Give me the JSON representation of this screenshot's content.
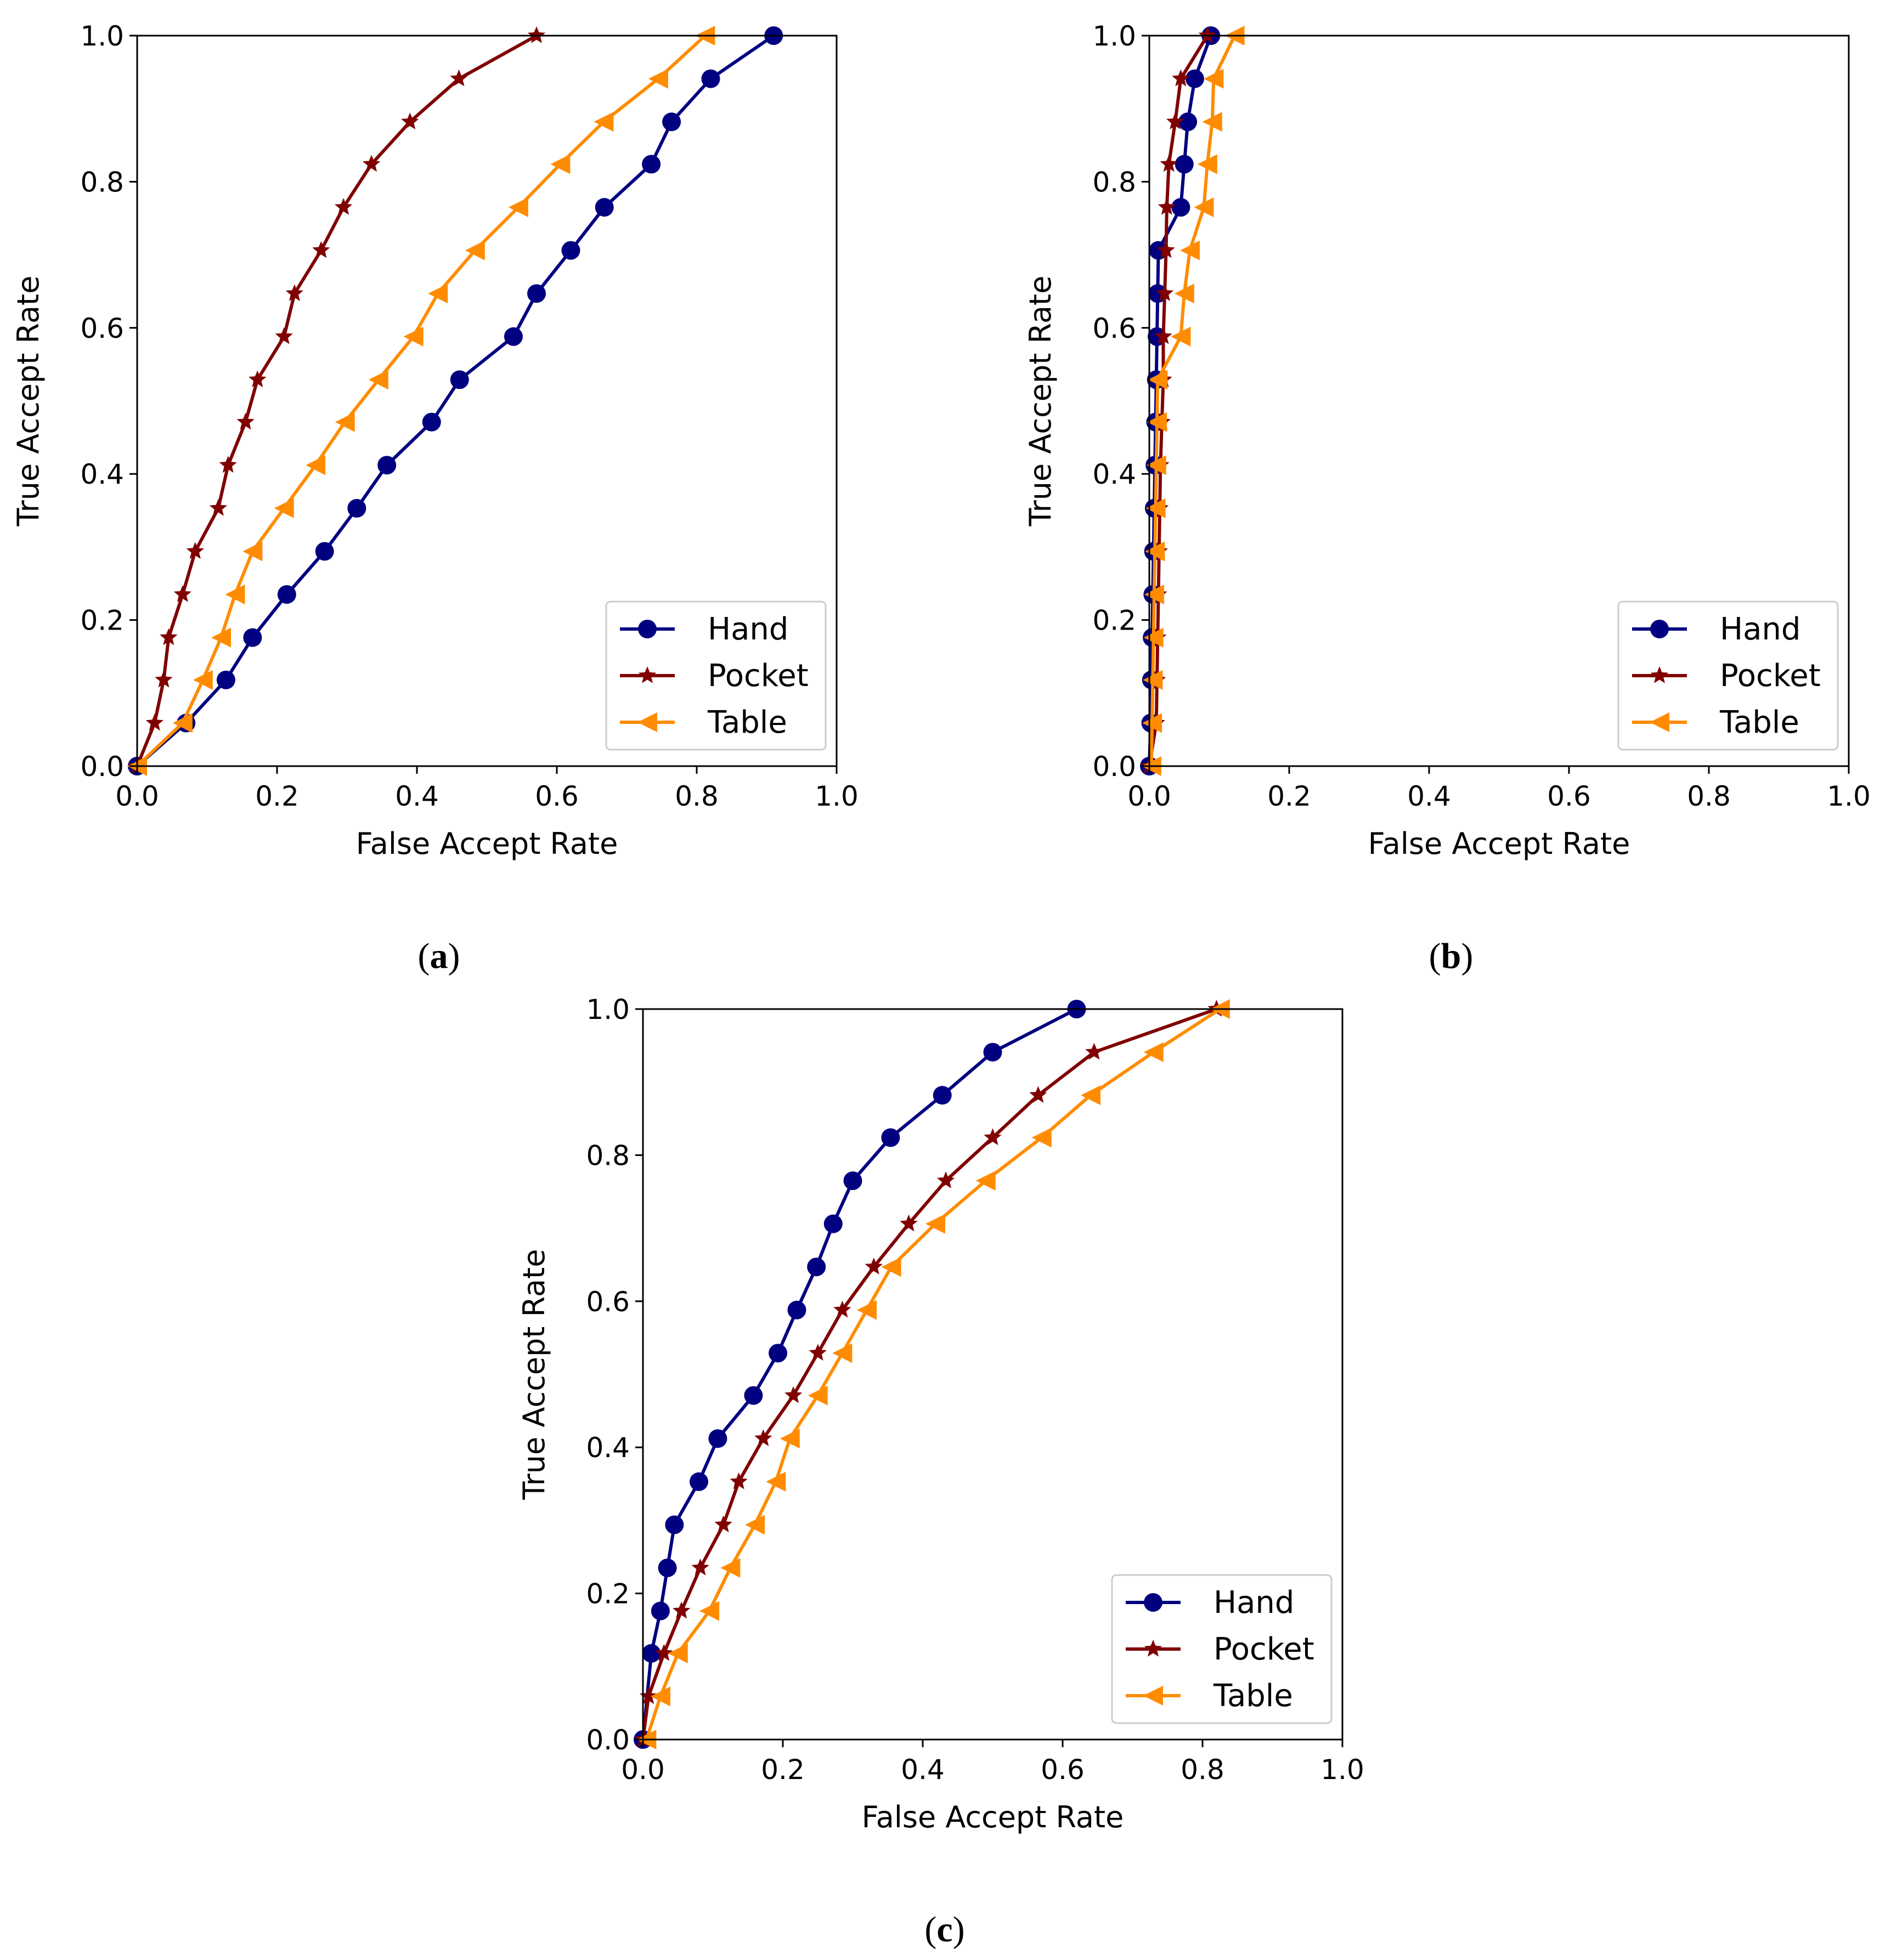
{
  "series_colors": {
    "Hand": "#000080",
    "Pocket": "#800000",
    "Table": "#FF8C00"
  },
  "series_markers": {
    "Hand": "circle",
    "Pocket": "star",
    "Table": "triangle-left"
  },
  "chart_data": [
    {
      "type": "line",
      "caption_letter": "a",
      "xlabel": "False Accept Rate",
      "ylabel": "True Accept Rate",
      "xlim": [
        0,
        1
      ],
      "ylim": [
        0,
        1
      ],
      "xticks": [
        "0.0",
        "0.2",
        "0.4",
        "0.6",
        "0.8",
        "1.0"
      ],
      "yticks": [
        "0.0",
        "0.2",
        "0.4",
        "0.6",
        "0.8",
        "1.0"
      ],
      "grid": false,
      "legend_position": "bottom-right",
      "series": [
        {
          "name": "Hand",
          "x": [
            0.0,
            0.07,
            0.127,
            0.165,
            0.214,
            0.268,
            0.314,
            0.357,
            0.421,
            0.461,
            0.538,
            0.571,
            0.62,
            0.668,
            0.735,
            0.764,
            0.82,
            0.91
          ],
          "y": [
            0.0,
            0.059,
            0.118,
            0.176,
            0.235,
            0.294,
            0.353,
            0.412,
            0.471,
            0.529,
            0.588,
            0.647,
            0.706,
            0.765,
            0.824,
            0.882,
            0.941,
            1.0
          ]
        },
        {
          "name": "Pocket",
          "x": [
            0.0,
            0.025,
            0.038,
            0.045,
            0.065,
            0.083,
            0.116,
            0.13,
            0.155,
            0.172,
            0.21,
            0.225,
            0.263,
            0.295,
            0.335,
            0.39,
            0.46,
            0.571
          ],
          "y": [
            0.0,
            0.059,
            0.118,
            0.176,
            0.235,
            0.294,
            0.353,
            0.412,
            0.471,
            0.529,
            0.588,
            0.647,
            0.706,
            0.765,
            0.824,
            0.882,
            0.941,
            1.0
          ]
        },
        {
          "name": "Table",
          "x": [
            0.0,
            0.065,
            0.094,
            0.12,
            0.14,
            0.165,
            0.21,
            0.255,
            0.297,
            0.345,
            0.395,
            0.43,
            0.483,
            0.545,
            0.605,
            0.667,
            0.745,
            0.812
          ],
          "y": [
            0.0,
            0.059,
            0.118,
            0.176,
            0.235,
            0.294,
            0.353,
            0.412,
            0.471,
            0.529,
            0.588,
            0.647,
            0.706,
            0.765,
            0.824,
            0.882,
            0.941,
            1.0
          ]
        }
      ]
    },
    {
      "type": "line",
      "caption_letter": "b",
      "xlabel": "False Accept Rate",
      "ylabel": "True Accept Rate",
      "xlim": [
        0,
        1
      ],
      "ylim": [
        0,
        1
      ],
      "xticks": [
        "0.0",
        "0.2",
        "0.4",
        "0.6",
        "0.8",
        "1.0"
      ],
      "yticks": [
        "0.0",
        "0.2",
        "0.4",
        "0.6",
        "0.8",
        "1.0"
      ],
      "grid": false,
      "legend_position": "bottom-right",
      "series": [
        {
          "name": "Hand",
          "x": [
            0.0,
            0.002,
            0.003,
            0.004,
            0.005,
            0.006,
            0.007,
            0.008,
            0.009,
            0.01,
            0.011,
            0.012,
            0.013,
            0.045,
            0.05,
            0.055,
            0.065,
            0.088
          ],
          "y": [
            0.0,
            0.059,
            0.118,
            0.176,
            0.235,
            0.294,
            0.353,
            0.412,
            0.471,
            0.529,
            0.588,
            0.647,
            0.706,
            0.765,
            0.824,
            0.882,
            0.941,
            1.0
          ]
        },
        {
          "name": "Pocket",
          "x": [
            0.0,
            0.01,
            0.011,
            0.012,
            0.013,
            0.014,
            0.015,
            0.016,
            0.018,
            0.02,
            0.02,
            0.022,
            0.024,
            0.025,
            0.028,
            0.037,
            0.045,
            0.083
          ],
          "y": [
            0.0,
            0.059,
            0.118,
            0.176,
            0.235,
            0.294,
            0.353,
            0.412,
            0.471,
            0.529,
            0.588,
            0.647,
            0.706,
            0.765,
            0.824,
            0.882,
            0.941,
            1.0
          ]
        },
        {
          "name": "Table",
          "x": [
            0.003,
            0.004,
            0.005,
            0.006,
            0.007,
            0.008,
            0.009,
            0.01,
            0.011,
            0.012,
            0.045,
            0.05,
            0.058,
            0.078,
            0.083,
            0.09,
            0.092,
            0.122
          ],
          "y": [
            0.0,
            0.059,
            0.118,
            0.176,
            0.235,
            0.294,
            0.353,
            0.412,
            0.471,
            0.529,
            0.588,
            0.647,
            0.706,
            0.765,
            0.824,
            0.882,
            0.941,
            1.0
          ]
        }
      ]
    },
    {
      "type": "line",
      "caption_letter": "c",
      "xlabel": "False Accept Rate",
      "ylabel": "True Accept Rate",
      "xlim": [
        0,
        1
      ],
      "ylim": [
        0,
        1
      ],
      "xticks": [
        "0.0",
        "0.2",
        "0.4",
        "0.6",
        "0.8",
        "1.0"
      ],
      "yticks": [
        "0.0",
        "0.2",
        "0.4",
        "0.6",
        "0.8",
        "1.0"
      ],
      "grid": false,
      "legend_position": "bottom-right",
      "series": [
        {
          "name": "Hand",
          "x": [
            0.0,
            0.012,
            0.025,
            0.035,
            0.045,
            0.08,
            0.107,
            0.158,
            0.193,
            0.22,
            0.248,
            0.272,
            0.3,
            0.354,
            0.428,
            0.5,
            0.62
          ],
          "y": [
            0.0,
            0.118,
            0.176,
            0.235,
            0.294,
            0.353,
            0.412,
            0.471,
            0.529,
            0.588,
            0.647,
            0.706,
            0.765,
            0.824,
            0.882,
            0.941,
            1.0
          ]
        },
        {
          "name": "Pocket",
          "x": [
            0.0,
            0.008,
            0.03,
            0.055,
            0.082,
            0.115,
            0.137,
            0.172,
            0.215,
            0.25,
            0.285,
            0.33,
            0.38,
            0.433,
            0.5,
            0.565,
            0.645,
            0.82
          ],
          "y": [
            0.0,
            0.059,
            0.118,
            0.176,
            0.235,
            0.294,
            0.353,
            0.412,
            0.471,
            0.529,
            0.588,
            0.647,
            0.706,
            0.765,
            0.824,
            0.882,
            0.941,
            1.0
          ]
        },
        {
          "name": "Table",
          "x": [
            0.005,
            0.025,
            0.05,
            0.095,
            0.125,
            0.16,
            0.19,
            0.21,
            0.25,
            0.285,
            0.32,
            0.355,
            0.418,
            0.49,
            0.57,
            0.64,
            0.73,
            0.825
          ],
          "y": [
            0.0,
            0.059,
            0.118,
            0.176,
            0.235,
            0.294,
            0.353,
            0.412,
            0.471,
            0.529,
            0.588,
            0.647,
            0.706,
            0.765,
            0.824,
            0.882,
            0.941,
            1.0
          ]
        }
      ]
    }
  ]
}
